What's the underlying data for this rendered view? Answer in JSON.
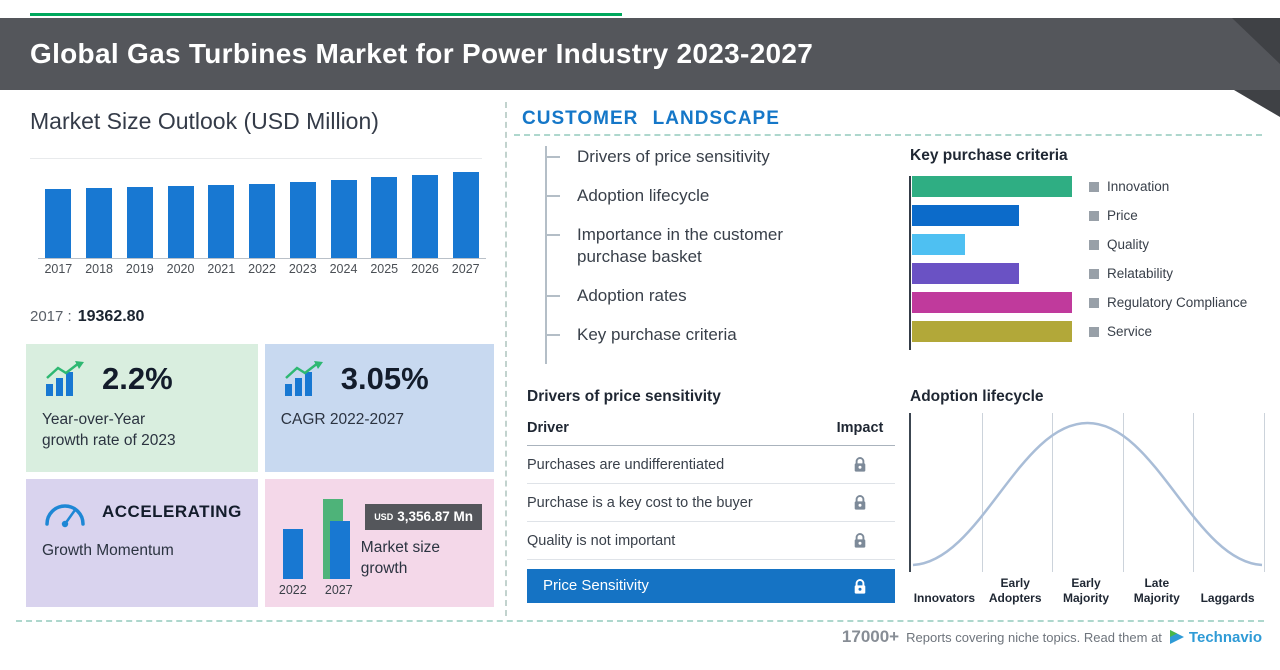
{
  "header": {
    "title": "Global Gas Turbines Market for Power Industry 2023-2027"
  },
  "left": {
    "heading": "Market Size Outlook (USD Million)",
    "base_year_label": "2017 :",
    "base_year_value": "19362.80",
    "cards": {
      "yoy": {
        "value": "2.2%",
        "line1": "Year-over-Year",
        "line2": "growth rate of 2023"
      },
      "cagr": {
        "value": "3.05%",
        "label": "CAGR 2022-2027"
      },
      "momentum": {
        "value": "ACCELERATING",
        "label": "Growth Momentum"
      },
      "growth": {
        "usd": "USD",
        "amount": "3,356.87 Mn",
        "label1": "Market size",
        "label2": "growth"
      }
    },
    "icons": {
      "yoy": "bar-chart-up-arrow",
      "cagr": "bar-chart-up-arrow",
      "momentum": "speedometer"
    }
  },
  "right": {
    "heading": "CUSTOMER LANDSCAPE",
    "landscape_items": [
      "Drivers of price sensitivity",
      "Adoption lifecycle",
      "Importance in the customer purchase basket",
      "Adoption rates",
      "Key purchase criteria"
    ],
    "kpc_heading": "Key purchase criteria",
    "drivers": {
      "heading": "Drivers of price sensitivity",
      "col_driver": "Driver",
      "col_impact": "Impact",
      "rows": [
        "Purchases are undifferentiated",
        "Purchase is a key cost to the buyer",
        "Quality is not important"
      ],
      "highlight": "Price Sensitivity",
      "impact_icon": "lock"
    },
    "adoption_heading": "Adoption lifecycle"
  },
  "footer": {
    "count": "17000+",
    "text": "Reports covering niche topics. Read them at",
    "brand": "Technavio"
  },
  "colors": {
    "accent_green": "#00a85d",
    "header_gray": "#54565b",
    "primary_blue": "#1878d2",
    "highlight_blue": "#1573c4",
    "heading_blue": "#1577c8",
    "increment_green": "#4eb379"
  },
  "chart_data": [
    {
      "id": "market_size_outlook",
      "type": "bar",
      "title": "Market Size Outlook (USD Million)",
      "categories": [
        "2017",
        "2018",
        "2019",
        "2020",
        "2021",
        "2022",
        "2023",
        "2024",
        "2025",
        "2026",
        "2027"
      ],
      "values": [
        19362.8,
        19628,
        19897,
        20169,
        20445,
        20724,
        21180,
        21871,
        22584,
        23320,
        24081
      ],
      "ylabel": "USD Million",
      "bar_color": "#1878d2",
      "labeled_point": {
        "category": "2017",
        "value": 19362.8
      }
    },
    {
      "id": "key_purchase_criteria",
      "type": "bar",
      "orientation": "horizontal",
      "title": "Key purchase criteria",
      "categories": [
        "Innovation",
        "Price",
        "Quality",
        "Relatability",
        "Regulatory Compliance",
        "Service"
      ],
      "values": [
        3,
        2,
        1,
        2,
        3,
        3
      ],
      "values_unit": "relative-length",
      "colors": [
        "#2fae83",
        "#0c6bca",
        "#4ec0f2",
        "#6a52c4",
        "#c03a9c",
        "#b2a839"
      ],
      "legend_position": "right"
    },
    {
      "id": "market_size_growth",
      "type": "bar",
      "title": "Market size growth",
      "categories": [
        "2022",
        "2027"
      ],
      "values": [
        20724,
        24081
      ],
      "increment_label": "USD 3,356.87 Mn"
    },
    {
      "id": "adoption_lifecycle",
      "type": "area",
      "curve": "bell",
      "title": "Adoption lifecycle",
      "segments": [
        "Innovators",
        "Early Adopters",
        "Early Majority",
        "Late Majority",
        "Laggards"
      ]
    }
  ]
}
